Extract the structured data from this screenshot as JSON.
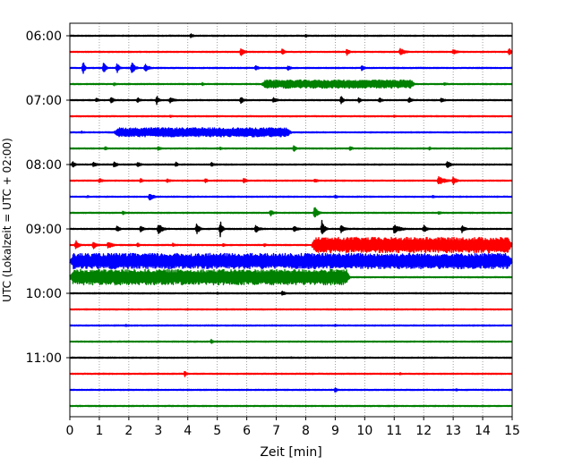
{
  "chart_data": {
    "type": "line",
    "title": "",
    "xlabel": "Zeit  [min]",
    "ylabel": "UTC (Lokalzeit = UTC + 02:00)",
    "xlim": [
      0,
      15
    ],
    "x_ticks": [
      "0",
      "1",
      "2",
      "3",
      "4",
      "5",
      "6",
      "7",
      "8",
      "9",
      "10",
      "11",
      "12",
      "13",
      "14",
      "15"
    ],
    "y_ticks": [
      "06:00",
      "07:00",
      "08:00",
      "09:00",
      "10:00",
      "11:00"
    ],
    "grid": "vertical dotted",
    "colors": [
      "#000000",
      "#ff0000",
      "#0000ff",
      "#008000"
    ],
    "rows": [
      {
        "time": "06:00",
        "color": "#000000",
        "events": [
          {
            "x": 4.1,
            "w": 0.3,
            "a": 0.25
          },
          {
            "x": 8.0,
            "w": 0.2,
            "a": 0.2
          }
        ]
      },
      {
        "time": "06:15",
        "color": "#ff0000",
        "events": [
          {
            "x": 5.8,
            "w": 0.3,
            "a": 0.5
          },
          {
            "x": 7.2,
            "w": 0.3,
            "a": 0.35
          },
          {
            "x": 9.4,
            "w": 0.2,
            "a": 0.45
          },
          {
            "x": 11.2,
            "w": 0.5,
            "a": 0.4
          },
          {
            "x": 13.0,
            "w": 0.4,
            "a": 0.3
          },
          {
            "x": 14.9,
            "w": 0.2,
            "a": 0.45
          }
        ]
      },
      {
        "time": "06:30",
        "color": "#0000ff",
        "events": [
          {
            "x": 0.45,
            "w": 0.15,
            "a": 1.0
          },
          {
            "x": 1.15,
            "w": 0.2,
            "a": 0.7
          },
          {
            "x": 1.6,
            "w": 0.2,
            "a": 0.7
          },
          {
            "x": 2.1,
            "w": 0.3,
            "a": 0.7
          },
          {
            "x": 2.55,
            "w": 0.4,
            "a": 0.45
          },
          {
            "x": 6.3,
            "w": 0.3,
            "a": 0.3
          },
          {
            "x": 7.4,
            "w": 0.3,
            "a": 0.3
          },
          {
            "x": 9.9,
            "w": 0.3,
            "a": 0.3
          }
        ]
      },
      {
        "time": "06:45",
        "color": "#008000",
        "events": [
          {
            "x": 1.5,
            "w": 0.3,
            "a": 0.2
          },
          {
            "x": 4.5,
            "w": 0.2,
            "a": 0.2
          },
          {
            "x": 12.7,
            "w": 0.3,
            "a": 0.2
          }
        ],
        "bands": [
          {
            "start": 6.5,
            "end": 11.7,
            "a": 0.45
          }
        ]
      },
      {
        "time": "07:00",
        "color": "#000000",
        "events": [
          {
            "x": 0.9,
            "w": 0.2,
            "a": 0.3
          },
          {
            "x": 1.4,
            "w": 0.3,
            "a": 0.35
          },
          {
            "x": 2.3,
            "w": 0.3,
            "a": 0.3
          },
          {
            "x": 2.95,
            "w": 0.2,
            "a": 0.55
          },
          {
            "x": 3.4,
            "w": 0.4,
            "a": 0.35
          },
          {
            "x": 5.8,
            "w": 0.3,
            "a": 0.4
          },
          {
            "x": 6.9,
            "w": 0.4,
            "a": 0.3
          },
          {
            "x": 9.2,
            "w": 0.2,
            "a": 0.5
          },
          {
            "x": 9.8,
            "w": 0.2,
            "a": 0.35
          },
          {
            "x": 10.5,
            "w": 0.3,
            "a": 0.3
          },
          {
            "x": 11.5,
            "w": 0.3,
            "a": 0.35
          },
          {
            "x": 12.6,
            "w": 0.3,
            "a": 0.3
          }
        ]
      },
      {
        "time": "07:15",
        "color": "#ff0000",
        "events": [
          {
            "x": 3.4,
            "w": 0.3,
            "a": 0.15
          },
          {
            "x": 11.0,
            "w": 0.3,
            "a": 0.15
          }
        ]
      },
      {
        "time": "07:30",
        "color": "#0000ff",
        "events": [
          {
            "x": 0.4,
            "w": 0.2,
            "a": 0.15
          }
        ],
        "bands": [
          {
            "start": 1.5,
            "end": 7.5,
            "a": 0.5
          }
        ]
      },
      {
        "time": "07:45",
        "color": "#008000",
        "events": [
          {
            "x": 1.2,
            "w": 0.2,
            "a": 0.25
          },
          {
            "x": 3.0,
            "w": 0.3,
            "a": 0.25
          },
          {
            "x": 5.1,
            "w": 0.2,
            "a": 0.2
          },
          {
            "x": 7.6,
            "w": 0.2,
            "a": 0.45
          },
          {
            "x": 9.5,
            "w": 0.3,
            "a": 0.25
          },
          {
            "x": 12.2,
            "w": 0.2,
            "a": 0.2
          }
        ]
      },
      {
        "time": "08:00",
        "color": "#000000",
        "events": [
          {
            "x": 0.1,
            "w": 0.2,
            "a": 0.45
          },
          {
            "x": 0.8,
            "w": 0.3,
            "a": 0.35
          },
          {
            "x": 1.5,
            "w": 0.3,
            "a": 0.35
          },
          {
            "x": 2.3,
            "w": 0.3,
            "a": 0.3
          },
          {
            "x": 3.6,
            "w": 0.2,
            "a": 0.3
          },
          {
            "x": 4.8,
            "w": 0.3,
            "a": 0.25
          },
          {
            "x": 12.8,
            "w": 0.3,
            "a": 0.45
          }
        ]
      },
      {
        "time": "08:15",
        "color": "#ff0000",
        "events": [
          {
            "x": 1.0,
            "w": 0.3,
            "a": 0.3
          },
          {
            "x": 2.4,
            "w": 0.2,
            "a": 0.3
          },
          {
            "x": 3.3,
            "w": 0.3,
            "a": 0.25
          },
          {
            "x": 4.6,
            "w": 0.2,
            "a": 0.3
          },
          {
            "x": 5.9,
            "w": 0.3,
            "a": 0.3
          },
          {
            "x": 8.3,
            "w": 0.3,
            "a": 0.25
          },
          {
            "x": 12.5,
            "w": 0.6,
            "a": 0.55
          },
          {
            "x": 13.0,
            "w": 0.3,
            "a": 0.5
          }
        ]
      },
      {
        "time": "08:30",
        "color": "#0000ff",
        "events": [
          {
            "x": 0.6,
            "w": 0.2,
            "a": 0.15
          },
          {
            "x": 2.7,
            "w": 0.4,
            "a": 0.45
          },
          {
            "x": 9.0,
            "w": 0.3,
            "a": 0.2
          },
          {
            "x": 12.3,
            "w": 0.3,
            "a": 0.15
          }
        ]
      },
      {
        "time": "08:45",
        "color": "#008000",
        "events": [
          {
            "x": 1.8,
            "w": 0.3,
            "a": 0.2
          },
          {
            "x": 6.8,
            "w": 0.3,
            "a": 0.4
          },
          {
            "x": 8.3,
            "w": 0.3,
            "a": 0.75
          },
          {
            "x": 12.5,
            "w": 0.3,
            "a": 0.2
          }
        ]
      },
      {
        "time": "09:00",
        "color": "#000000",
        "events": [
          {
            "x": 1.6,
            "w": 0.3,
            "a": 0.35
          },
          {
            "x": 2.4,
            "w": 0.3,
            "a": 0.4
          },
          {
            "x": 3.0,
            "w": 0.4,
            "a": 0.65
          },
          {
            "x": 4.3,
            "w": 0.3,
            "a": 0.6
          },
          {
            "x": 5.1,
            "w": 0.2,
            "a": 1.0
          },
          {
            "x": 6.3,
            "w": 0.4,
            "a": 0.45
          },
          {
            "x": 7.6,
            "w": 0.4,
            "a": 0.35
          },
          {
            "x": 8.55,
            "w": 0.25,
            "a": 1.0
          },
          {
            "x": 9.2,
            "w": 0.4,
            "a": 0.45
          },
          {
            "x": 11.0,
            "w": 0.6,
            "a": 0.55
          },
          {
            "x": 12.0,
            "w": 0.3,
            "a": 0.45
          },
          {
            "x": 13.3,
            "w": 0.3,
            "a": 0.45
          }
        ]
      },
      {
        "time": "09:15",
        "color": "#ff0000",
        "events": [
          {
            "x": 0.2,
            "w": 0.3,
            "a": 0.55
          },
          {
            "x": 0.8,
            "w": 0.3,
            "a": 0.45
          },
          {
            "x": 1.3,
            "w": 0.4,
            "a": 0.45
          },
          {
            "x": 2.3,
            "w": 0.2,
            "a": 0.25
          },
          {
            "x": 3.5,
            "w": 0.2,
            "a": 0.25
          },
          {
            "x": 5.2,
            "w": 0.2,
            "a": 0.2
          },
          {
            "x": 6.6,
            "w": 0.2,
            "a": 0.2
          }
        ],
        "bands": [
          {
            "start": 8.2,
            "end": 15.0,
            "a": 0.85
          }
        ]
      },
      {
        "time": "09:30",
        "color": "#0000ff",
        "events": [],
        "bands": [
          {
            "start": 0.0,
            "end": 15.0,
            "a": 0.85
          }
        ]
      },
      {
        "time": "09:45",
        "color": "#008000",
        "events": [],
        "bands": [
          {
            "start": 0.0,
            "end": 9.5,
            "a": 0.85
          }
        ]
      },
      {
        "time": "10:00",
        "color": "#000000",
        "events": [
          {
            "x": 7.2,
            "w": 0.3,
            "a": 0.3
          },
          {
            "x": 5.0,
            "w": 0.2,
            "a": 0.15
          }
        ]
      },
      {
        "time": "10:15",
        "color": "#ff0000",
        "events": [
          {
            "x": 4.0,
            "w": 0.2,
            "a": 0.1
          }
        ]
      },
      {
        "time": "10:30",
        "color": "#0000ff",
        "events": [
          {
            "x": 1.9,
            "w": 0.2,
            "a": 0.15
          },
          {
            "x": 9.0,
            "w": 0.2,
            "a": 0.15
          }
        ]
      },
      {
        "time": "10:45",
        "color": "#008000",
        "events": [
          {
            "x": 4.8,
            "w": 0.2,
            "a": 0.3
          }
        ]
      },
      {
        "time": "11:00",
        "color": "#000000",
        "events": [
          {
            "x": 7.5,
            "w": 0.2,
            "a": 0.1
          }
        ]
      },
      {
        "time": "11:15",
        "color": "#ff0000",
        "events": [
          {
            "x": 3.9,
            "w": 0.15,
            "a": 0.35
          },
          {
            "x": 11.2,
            "w": 0.2,
            "a": 0.15
          }
        ]
      },
      {
        "time": "11:30",
        "color": "#0000ff",
        "events": [
          {
            "x": 9.0,
            "w": 0.2,
            "a": 0.35
          },
          {
            "x": 13.1,
            "w": 0.2,
            "a": 0.15
          }
        ]
      },
      {
        "time": "11:45",
        "color": "#008000",
        "events": [
          {
            "x": 2.5,
            "w": 0.2,
            "a": 0.1
          }
        ]
      }
    ]
  }
}
